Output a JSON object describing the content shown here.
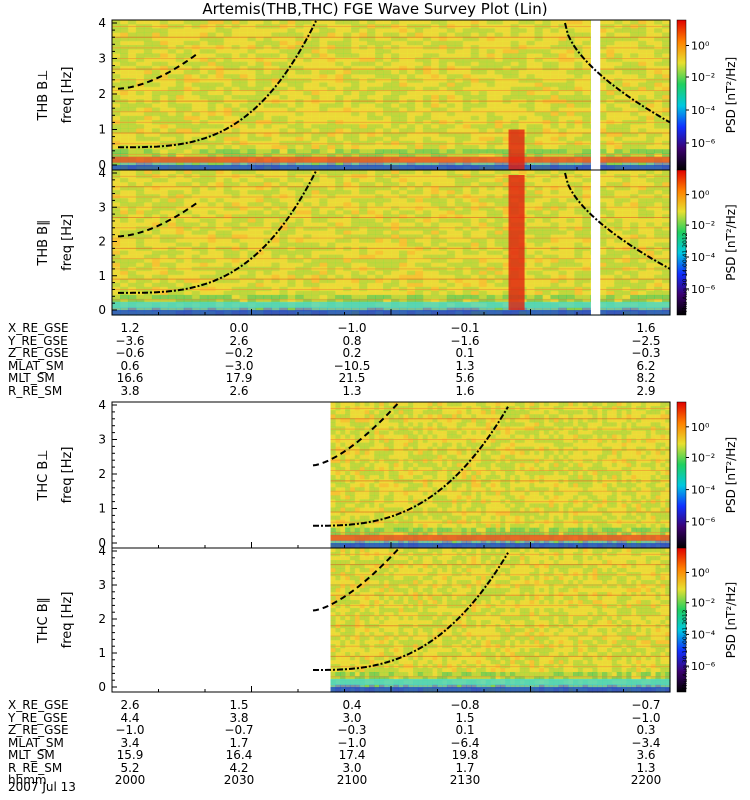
{
  "title": "Artemis(THB,THC) FGE Wave Survey Plot (Lin)",
  "colors": {
    "gap": "#ffffff",
    "background_psd": "#f4c838",
    "line_band": "#58c848",
    "fce_band": "#c81e1e",
    "curve": "#000000"
  },
  "colorbar": {
    "label": "PSD [nT²/Hz]",
    "ticks": [
      "10⁰",
      "10⁻²",
      "10⁻⁴",
      "10⁻⁶"
    ],
    "stops": [
      "#000000",
      "#3a0070",
      "#1030ff",
      "#00c8e0",
      "#20d060",
      "#e8e030",
      "#ff8000",
      "#e00000"
    ]
  },
  "chart_data": [
    {
      "type": "heatmap",
      "name": "THB B⊥",
      "ylabel": "freq [Hz]",
      "panel_label": "THB B⊥",
      "ylim": [
        0,
        4
      ],
      "yticks": [
        "0",
        "1",
        "2",
        "3",
        "4"
      ],
      "zlabel": "PSD [nT²/Hz]",
      "zscale": "log",
      "data_start_hhmm": "2000",
      "gap_hhmm": [
        "2143",
        "2145"
      ],
      "curves": [
        "dashed",
        "dash-dot"
      ]
    },
    {
      "type": "heatmap",
      "name": "THB B∥",
      "ylabel": "freq [Hz]",
      "panel_label": "THB B∥",
      "ylim": [
        0,
        4
      ],
      "yticks": [
        "0",
        "1",
        "2",
        "3",
        "4"
      ],
      "zlabel": "PSD [nT²/Hz]",
      "zscale": "log",
      "data_start_hhmm": "2000",
      "gap_hhmm": [
        "2143",
        "2145"
      ],
      "curves": [
        "dashed",
        "dash-dot"
      ]
    },
    {
      "type": "heatmap",
      "name": "THC B⊥",
      "ylabel": "freq [Hz]",
      "panel_label": "THC B⊥",
      "ylim": [
        0,
        4
      ],
      "yticks": [
        "0",
        "1",
        "2",
        "3",
        "4"
      ],
      "zlabel": "PSD [nT²/Hz]",
      "zscale": "log",
      "data_start_hhmm": "2047",
      "curves": [
        "dashed",
        "dash-dot"
      ]
    },
    {
      "type": "heatmap",
      "name": "THC B∥",
      "ylabel": "freq [Hz]",
      "panel_label": "THC B∥",
      "ylim": [
        0,
        4
      ],
      "yticks": [
        "0",
        "1",
        "2",
        "3",
        "4"
      ],
      "zlabel": "PSD [nT²/Hz]",
      "zscale": "log",
      "data_start_hhmm": "2047",
      "curves": [
        "dashed",
        "dash-dot"
      ]
    }
  ],
  "ephem_thb": [
    {
      "label": "X_RE_GSE",
      "values": [
        "1.2",
        "0.0",
        "−1.0",
        "−0.1",
        "1.6"
      ]
    },
    {
      "label": "Y_RE_GSE",
      "values": [
        "−3.6",
        "2.6",
        "0.8",
        "−1.6",
        "−2.5"
      ]
    },
    {
      "label": "Z_RE_GSE",
      "values": [
        "−0.6",
        "−0.2",
        "0.2",
        "0.1",
        "−0.3"
      ]
    },
    {
      "label": "MLAT_SM",
      "values": [
        "0.6",
        "−3.0",
        "−10.5",
        "1.3",
        "6.2"
      ]
    },
    {
      "label": "MLT_SM",
      "values": [
        "16.6",
        "17.9",
        "21.5",
        "5.6",
        "8.2"
      ]
    },
    {
      "label": "R_RE_SM",
      "values": [
        "3.8",
        "2.6",
        "1.3",
        "1.6",
        "2.9"
      ]
    }
  ],
  "ephem_thc": [
    {
      "label": "X_RE_GSE",
      "values": [
        "2.6",
        "1.5",
        "0.4",
        "−0.8",
        "−0.7"
      ]
    },
    {
      "label": "Y_RE_GSE",
      "values": [
        "4.4",
        "3.8",
        "3.0",
        "1.5",
        "−1.0"
      ]
    },
    {
      "label": "Z_RE_GSE",
      "values": [
        "−1.0",
        "−0.7",
        "−0.3",
        "0.1",
        "0.3"
      ]
    },
    {
      "label": "MLAT_SM",
      "values": [
        "3.4",
        "1.7",
        "−1.0",
        "−6.4",
        "−3.4"
      ]
    },
    {
      "label": "MLT_SM",
      "values": [
        "15.9",
        "16.4",
        "17.4",
        "19.8",
        "3.6"
      ]
    },
    {
      "label": "R_RE_SM",
      "values": [
        "5.2",
        "4.2",
        "3.0",
        "1.7",
        "1.3"
      ]
    },
    {
      "label": "hhmm",
      "values": [
        "2000",
        "2030",
        "2100",
        "2130",
        "2200"
      ]
    }
  ],
  "date": "2007 Jul 13",
  "stamp": "Thu Aug 30 14:00:41 2012"
}
